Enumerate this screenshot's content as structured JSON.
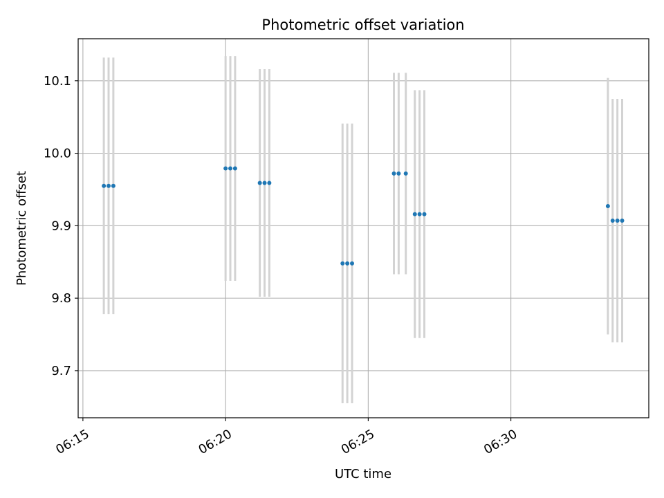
{
  "chart_data": {
    "type": "scatter",
    "title": "Photometric offset variation",
    "xlabel": "UTC time",
    "ylabel": "Photometric offset",
    "x_axis": {
      "kind": "time",
      "range": [
        "06:14:50",
        "06:34:50"
      ],
      "ticks": [
        "06:15",
        "06:20",
        "06:25",
        "06:30"
      ]
    },
    "y_axis": {
      "range": [
        9.635,
        10.158
      ],
      "ticks": [
        9.7,
        9.8,
        9.9,
        10.0,
        10.1
      ],
      "tick_labels": [
        "9.7",
        "9.8",
        "9.9",
        "10.0",
        "10.1"
      ]
    },
    "grid": true,
    "errorbar_color": "#d3d3d3",
    "marker_color": "#1f77b4",
    "series": [
      {
        "points": [
          {
            "t": "06:15:44",
            "y": 9.955,
            "err": 0.177
          },
          {
            "t": "06:15:54",
            "y": 9.955,
            "err": 0.177
          },
          {
            "t": "06:16:04",
            "y": 9.955,
            "err": 0.177
          },
          {
            "t": "06:20:00",
            "y": 9.979,
            "err": 0.155
          },
          {
            "t": "06:20:10",
            "y": 9.979,
            "err": 0.155
          },
          {
            "t": "06:20:20",
            "y": 9.979,
            "err": 0.155
          },
          {
            "t": "06:21:12",
            "y": 9.959,
            "err": 0.157
          },
          {
            "t": "06:21:22",
            "y": 9.959,
            "err": 0.157
          },
          {
            "t": "06:21:32",
            "y": 9.959,
            "err": 0.157
          },
          {
            "t": "06:24:06",
            "y": 9.848,
            "err": 0.193
          },
          {
            "t": "06:24:16",
            "y": 9.848,
            "err": 0.193
          },
          {
            "t": "06:24:26",
            "y": 9.848,
            "err": 0.193
          },
          {
            "t": "06:25:54",
            "y": 9.972,
            "err": 0.139
          },
          {
            "t": "06:26:04",
            "y": 9.972,
            "err": 0.139
          },
          {
            "t": "06:26:19",
            "y": 9.972,
            "err": 0.139
          },
          {
            "t": "06:26:38",
            "y": 9.916,
            "err": 0.171
          },
          {
            "t": "06:26:48",
            "y": 9.916,
            "err": 0.171
          },
          {
            "t": "06:26:58",
            "y": 9.916,
            "err": 0.171
          },
          {
            "t": "06:33:24",
            "y": 9.927,
            "err": 0.177
          },
          {
            "t": "06:33:34",
            "y": 9.907,
            "err": 0.168
          },
          {
            "t": "06:33:44",
            "y": 9.907,
            "err": 0.168
          },
          {
            "t": "06:33:54",
            "y": 9.907,
            "err": 0.168
          }
        ]
      }
    ]
  }
}
